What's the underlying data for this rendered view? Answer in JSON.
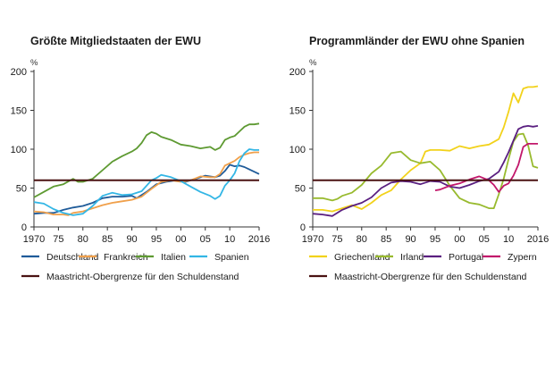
{
  "chart_data": [
    {
      "type": "line",
      "title": "Größte Mitgliedstaaten der EWU",
      "unit": "%",
      "ylim": [
        0,
        200
      ],
      "yticks": [
        0,
        50,
        100,
        150,
        200
      ],
      "xlim": [
        1970,
        2016
      ],
      "xtick_labels": [
        "1970",
        "75",
        "80",
        "85",
        "90",
        "95",
        "00",
        "05",
        "10",
        "2016"
      ],
      "threshold": {
        "name": "Maastricht-Obergrenze für den Schuldenstand",
        "value": 60,
        "color": "#4a1212"
      },
      "legend_placement": "bottom",
      "series": [
        {
          "name": "Deutschland",
          "color": "#1f5b99",
          "x": [
            1970,
            1972,
            1974,
            1975,
            1976,
            1978,
            1980,
            1982,
            1984,
            1986,
            1988,
            1990,
            1991,
            1993,
            1995,
            1997,
            1999,
            2001,
            2003,
            2005,
            2007,
            2008,
            2009,
            2010,
            2011,
            2012,
            2013,
            2014,
            2015,
            2016
          ],
          "y": [
            17,
            18,
            18,
            20,
            22,
            25,
            27,
            31,
            37,
            39,
            39,
            40,
            37,
            45,
            55,
            58,
            60,
            58,
            62,
            66,
            64,
            66,
            72,
            80,
            78,
            79,
            77,
            74,
            71,
            68
          ]
        },
        {
          "name": "Frankreich",
          "color": "#f0a04b",
          "x": [
            1970,
            1972,
            1974,
            1975,
            1976,
            1977,
            1978,
            1980,
            1982,
            1984,
            1986,
            1988,
            1990,
            1992,
            1994,
            1996,
            1998,
            2000,
            2002,
            2004,
            2006,
            2007,
            2008,
            2009,
            2010,
            2011,
            2012,
            2013,
            2014,
            2015,
            2016
          ],
          "y": [
            20,
            19,
            16,
            16,
            16,
            15,
            18,
            20,
            24,
            28,
            31,
            33,
            35,
            39,
            49,
            58,
            60,
            58,
            60,
            65,
            64,
            64,
            68,
            79,
            82,
            85,
            90,
            93,
            95,
            96,
            96
          ]
        },
        {
          "name": "Italien",
          "color": "#5e9a32",
          "x": [
            1970,
            1972,
            1974,
            1976,
            1978,
            1979,
            1980,
            1982,
            1984,
            1986,
            1988,
            1990,
            1991,
            1992,
            1993,
            1994,
            1995,
            1996,
            1998,
            2000,
            2002,
            2004,
            2006,
            2007,
            2008,
            2009,
            2010,
            2011,
            2012,
            2013,
            2014,
            2015,
            2016
          ],
          "y": [
            38,
            45,
            52,
            55,
            62,
            58,
            58,
            62,
            73,
            84,
            91,
            97,
            101,
            108,
            118,
            122,
            120,
            116,
            112,
            106,
            104,
            101,
            103,
            99,
            102,
            112,
            115,
            117,
            123,
            129,
            132,
            132,
            133
          ]
        },
        {
          "name": "Spanien",
          "color": "#33b6e5",
          "x": [
            1970,
            1972,
            1974,
            1976,
            1978,
            1980,
            1982,
            1984,
            1986,
            1988,
            1990,
            1992,
            1994,
            1995,
            1996,
            1998,
            2000,
            2002,
            2004,
            2006,
            2007,
            2008,
            2009,
            2010,
            2011,
            2012,
            2013,
            2014,
            2015,
            2016
          ],
          "y": [
            32,
            30,
            23,
            18,
            15,
            17,
            27,
            40,
            44,
            41,
            42,
            46,
            60,
            63,
            67,
            64,
            59,
            52,
            45,
            40,
            36,
            40,
            53,
            60,
            69,
            85,
            95,
            100,
            99,
            99
          ]
        }
      ]
    },
    {
      "type": "line",
      "title": "Programmländer der EWU ohne Spanien",
      "unit": "%",
      "ylim": [
        0,
        200
      ],
      "yticks": [
        0,
        50,
        100,
        150,
        200
      ],
      "xlim": [
        1970,
        2016
      ],
      "xtick_labels": [
        "1970",
        "75",
        "80",
        "85",
        "90",
        "95",
        "00",
        "05",
        "10",
        "2016"
      ],
      "threshold": {
        "name": "Maastricht-Obergrenze für den Schuldenstand",
        "value": 60,
        "color": "#4a1212"
      },
      "legend_placement": "bottom",
      "series": [
        {
          "name": "Griechenland",
          "color": "#f2d21b",
          "x": [
            1970,
            1972,
            1974,
            1976,
            1978,
            1980,
            1982,
            1984,
            1986,
            1988,
            1990,
            1992,
            1993,
            1994,
            1996,
            1998,
            2000,
            2002,
            2004,
            2006,
            2008,
            2009,
            2010,
            2011,
            2012,
            2013,
            2014,
            2015,
            2016
          ],
          "y": [
            22,
            22,
            20,
            24,
            28,
            23,
            31,
            41,
            47,
            61,
            73,
            82,
            97,
            99,
            99,
            98,
            104,
            101,
            104,
            106,
            113,
            128,
            148,
            172,
            160,
            178,
            180,
            180,
            181
          ]
        },
        {
          "name": "Irland",
          "color": "#98ba2e",
          "x": [
            1970,
            1972,
            1974,
            1975,
            1976,
            1978,
            1980,
            1982,
            1984,
            1986,
            1988,
            1990,
            1992,
            1994,
            1996,
            1998,
            2000,
            2002,
            2004,
            2006,
            2007,
            2008,
            2009,
            2010,
            2011,
            2012,
            2013,
            2014,
            2015,
            2016
          ],
          "y": [
            37,
            37,
            34,
            36,
            40,
            44,
            54,
            69,
            79,
            95,
            97,
            86,
            82,
            84,
            73,
            53,
            37,
            31,
            29,
            24,
            24,
            42,
            62,
            87,
            110,
            119,
            120,
            105,
            78,
            76
          ]
        },
        {
          "name": "Portugal",
          "color": "#5a1f80",
          "x": [
            1970,
            1972,
            1974,
            1976,
            1978,
            1980,
            1982,
            1984,
            1986,
            1988,
            1990,
            1992,
            1994,
            1996,
            1998,
            2000,
            2002,
            2004,
            2006,
            2008,
            2009,
            2010,
            2011,
            2012,
            2013,
            2014,
            2015,
            2016
          ],
          "y": [
            17,
            16,
            14,
            22,
            27,
            31,
            38,
            50,
            57,
            59,
            58,
            55,
            59,
            58,
            52,
            50,
            54,
            59,
            62,
            71,
            83,
            96,
            111,
            126,
            129,
            130,
            129,
            130
          ]
        },
        {
          "name": "Zypern",
          "color": "#c2186b",
          "x": [
            1995,
            1996,
            1998,
            2000,
            2002,
            2004,
            2006,
            2007,
            2008,
            2009,
            2010,
            2011,
            2012,
            2013,
            2014,
            2015,
            2016
          ],
          "y": [
            47,
            48,
            53,
            56,
            61,
            65,
            60,
            54,
            45,
            53,
            56,
            66,
            80,
            103,
            107,
            107,
            107
          ]
        }
      ]
    }
  ]
}
